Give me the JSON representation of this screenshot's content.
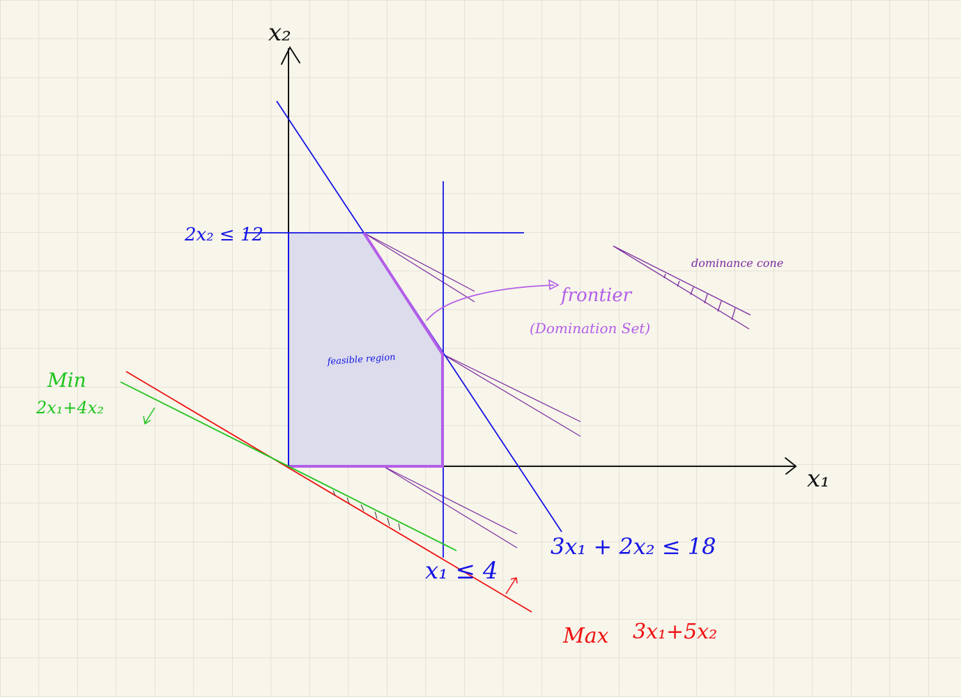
{
  "axes": {
    "x_label": "x₁",
    "y_label": "x₂"
  },
  "constraints": {
    "c1": "2x₂ ≤ 12",
    "c2": "x₁ ≤ 4",
    "c3": "3x₁ + 2x₂ ≤ 18"
  },
  "region": {
    "label": "feasible region"
  },
  "frontier": {
    "label": "frontier",
    "sublabel": "(Domination Set)"
  },
  "cone": {
    "label": "dominance cone"
  },
  "objectives": {
    "min_word": "Min",
    "min_expr": "2x₁+4x₂",
    "max_word": "Max",
    "max_expr": "3x₁+5x₂"
  },
  "colors": {
    "paper": "#f8f5ea",
    "grid": "#d9d8cf",
    "axis": "#111111",
    "constraint": "#1414e6",
    "region_fill": "#dcdcec",
    "frontier": "#b35ee8",
    "cone": "#7a2aa0",
    "min_obj": "#1cc41c",
    "max_obj": "#ee1111"
  }
}
